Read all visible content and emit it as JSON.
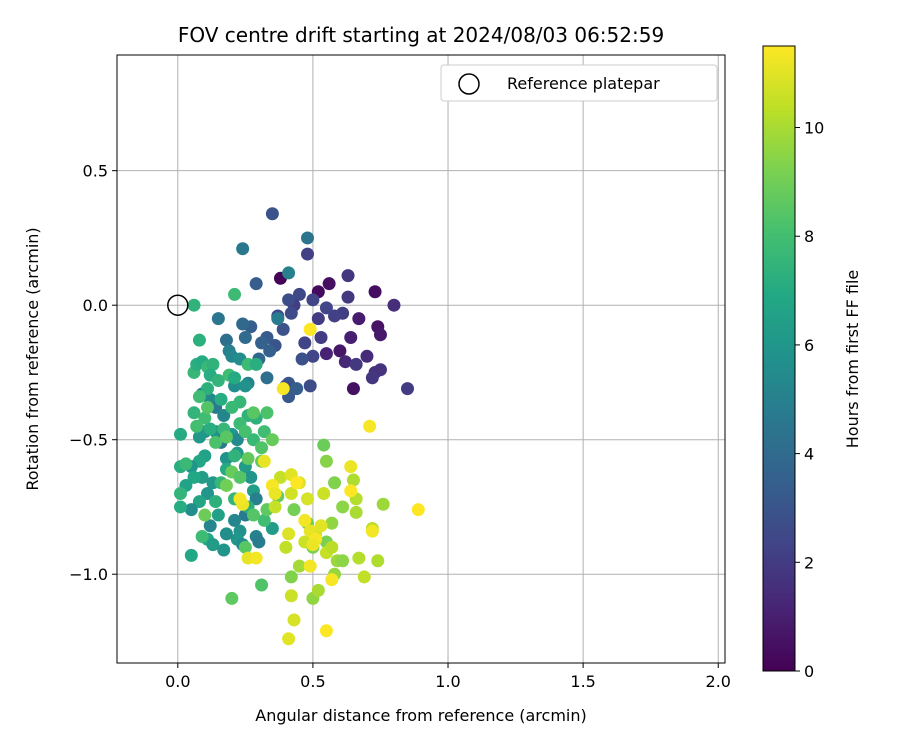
{
  "chart_data": {
    "type": "scatter",
    "title": "FOV centre drift starting at 2024/08/03 06:52:59",
    "xlabel": "Angular distance from reference (arcmin)",
    "ylabel": "Rotation from reference (arcmin)",
    "xlim": [
      -0.225,
      2.025
    ],
    "ylim": [
      -1.33,
      0.93
    ],
    "xticks": [
      0.0,
      0.5,
      1.0,
      1.5,
      2.0
    ],
    "xtick_labels": [
      "0.0",
      "0.5",
      "1.0",
      "1.5",
      "2.0"
    ],
    "yticks": [
      -1.0,
      -0.5,
      0.0,
      0.5
    ],
    "ytick_labels": [
      "−1.0",
      "−0.5",
      "0.0",
      "0.5"
    ],
    "grid": true,
    "legend": {
      "placement": "top-right",
      "entries": [
        {
          "label": "Reference platepar",
          "marker": "open-circle"
        }
      ]
    },
    "reference_point": {
      "x": 0.0,
      "y": 0.0
    },
    "colorbar": {
      "label": "Hours from first FF file",
      "colormap": "viridis",
      "range": [
        0,
        11.5
      ],
      "ticks": [
        0,
        2,
        4,
        6,
        8,
        10
      ],
      "tick_labels": [
        "0",
        "2",
        "4",
        "6",
        "8",
        "10"
      ]
    },
    "points": [
      {
        "x": 0.38,
        "y": 0.1,
        "h": 0.1
      },
      {
        "x": 0.52,
        "y": 0.05,
        "h": 0.3
      },
      {
        "x": 0.56,
        "y": 0.08,
        "h": 0.5
      },
      {
        "x": 0.73,
        "y": 0.05,
        "h": 0.4
      },
      {
        "x": 0.74,
        "y": -0.08,
        "h": 0.6
      },
      {
        "x": 0.75,
        "y": -0.11,
        "h": 0.8
      },
      {
        "x": 0.67,
        "y": -0.05,
        "h": 0.9
      },
      {
        "x": 0.64,
        "y": -0.12,
        "h": 1.0
      },
      {
        "x": 0.55,
        "y": -0.18,
        "h": 1.1
      },
      {
        "x": 0.6,
        "y": -0.17,
        "h": 0.7
      },
      {
        "x": 0.65,
        "y": -0.31,
        "h": 0.5
      },
      {
        "x": 0.62,
        "y": -0.21,
        "h": 1.3
      },
      {
        "x": 0.7,
        "y": -0.19,
        "h": 1.4
      },
      {
        "x": 0.73,
        "y": -0.25,
        "h": 1.6
      },
      {
        "x": 0.75,
        "y": -0.24,
        "h": 1.7
      },
      {
        "x": 0.8,
        "y": 0.0,
        "h": 1.5
      },
      {
        "x": 0.85,
        "y": -0.31,
        "h": 2.0
      },
      {
        "x": 0.72,
        "y": -0.27,
        "h": 1.8
      },
      {
        "x": 0.66,
        "y": -0.22,
        "h": 1.9
      },
      {
        "x": 0.63,
        "y": 0.11,
        "h": 1.8
      },
      {
        "x": 0.63,
        "y": 0.03,
        "h": 1.9
      },
      {
        "x": 0.61,
        "y": -0.03,
        "h": 2.1
      },
      {
        "x": 0.58,
        "y": -0.04,
        "h": 2.2
      },
      {
        "x": 0.55,
        "y": -0.01,
        "h": 2.4
      },
      {
        "x": 0.52,
        "y": -0.05,
        "h": 2.0
      },
      {
        "x": 0.5,
        "y": 0.02,
        "h": 2.3
      },
      {
        "x": 0.48,
        "y": 0.19,
        "h": 2.2
      },
      {
        "x": 0.45,
        "y": 0.04,
        "h": 2.5
      },
      {
        "x": 0.43,
        "y": 0.0,
        "h": 2.1
      },
      {
        "x": 0.42,
        "y": -0.03,
        "h": 2.6
      },
      {
        "x": 0.41,
        "y": 0.02,
        "h": 2.7
      },
      {
        "x": 0.47,
        "y": -0.14,
        "h": 2.3
      },
      {
        "x": 0.5,
        "y": -0.19,
        "h": 2.4
      },
      {
        "x": 0.53,
        "y": -0.12,
        "h": 2.0
      },
      {
        "x": 0.49,
        "y": -0.3,
        "h": 2.6
      },
      {
        "x": 0.46,
        "y": -0.2,
        "h": 2.8
      },
      {
        "x": 0.39,
        "y": -0.09,
        "h": 2.9
      },
      {
        "x": 0.37,
        "y": -0.04,
        "h": 2.5
      },
      {
        "x": 0.36,
        "y": -0.15,
        "h": 3.0
      },
      {
        "x": 0.41,
        "y": -0.29,
        "h": 3.1
      },
      {
        "x": 0.4,
        "y": -0.3,
        "h": 2.8
      },
      {
        "x": 0.41,
        "y": -0.34,
        "h": 3.2
      },
      {
        "x": 0.35,
        "y": 0.34,
        "h": 3.0
      },
      {
        "x": 0.29,
        "y": 0.08,
        "h": 3.4
      },
      {
        "x": 0.33,
        "y": -0.12,
        "h": 3.3
      },
      {
        "x": 0.34,
        "y": -0.17,
        "h": 3.5
      },
      {
        "x": 0.31,
        "y": -0.14,
        "h": 3.6
      },
      {
        "x": 0.27,
        "y": -0.08,
        "h": 3.4
      },
      {
        "x": 0.24,
        "y": -0.07,
        "h": 3.9
      },
      {
        "x": 0.25,
        "y": -0.12,
        "h": 4.0
      },
      {
        "x": 0.3,
        "y": -0.2,
        "h": 3.8
      },
      {
        "x": 0.33,
        "y": -0.27,
        "h": 4.2
      },
      {
        "x": 0.44,
        "y": -0.31,
        "h": 3.4
      },
      {
        "x": 0.48,
        "y": 0.25,
        "h": 4.4
      },
      {
        "x": 0.24,
        "y": 0.21,
        "h": 4.6
      },
      {
        "x": 0.41,
        "y": 0.12,
        "h": 5.0
      },
      {
        "x": 0.37,
        "y": -0.05,
        "h": 4.8
      },
      {
        "x": 0.15,
        "y": -0.05,
        "h": 4.5
      },
      {
        "x": 0.18,
        "y": -0.13,
        "h": 4.2
      },
      {
        "x": 0.19,
        "y": -0.17,
        "h": 4.9
      },
      {
        "x": 0.2,
        "y": -0.19,
        "h": 5.3
      },
      {
        "x": 0.23,
        "y": -0.2,
        "h": 5.5
      },
      {
        "x": 0.26,
        "y": -0.29,
        "h": 5.1
      },
      {
        "x": 0.21,
        "y": -0.3,
        "h": 5.6
      },
      {
        "x": 0.25,
        "y": -0.3,
        "h": 5.8
      },
      {
        "x": 0.09,
        "y": -0.33,
        "h": 5.0
      },
      {
        "x": 0.12,
        "y": -0.35,
        "h": 5.4
      },
      {
        "x": 0.14,
        "y": -0.38,
        "h": 4.7
      },
      {
        "x": 0.17,
        "y": -0.41,
        "h": 5.2
      },
      {
        "x": 0.14,
        "y": -0.47,
        "h": 5.7
      },
      {
        "x": 0.1,
        "y": -0.47,
        "h": 5.9
      },
      {
        "x": 0.08,
        "y": -0.49,
        "h": 6.1
      },
      {
        "x": 0.16,
        "y": -0.51,
        "h": 4.6
      },
      {
        "x": 0.2,
        "y": -0.48,
        "h": 6.0
      },
      {
        "x": 0.22,
        "y": -0.5,
        "h": 5.4
      },
      {
        "x": 0.18,
        "y": -0.57,
        "h": 5.8
      },
      {
        "x": 0.22,
        "y": -0.55,
        "h": 6.2
      },
      {
        "x": 0.25,
        "y": -0.6,
        "h": 6.3
      },
      {
        "x": 0.27,
        "y": -0.64,
        "h": 5.9
      },
      {
        "x": 0.28,
        "y": -0.69,
        "h": 6.4
      },
      {
        "x": 0.29,
        "y": -0.72,
        "h": 4.9
      },
      {
        "x": 0.25,
        "y": -0.78,
        "h": 4.7
      },
      {
        "x": 0.21,
        "y": -0.8,
        "h": 5.3
      },
      {
        "x": 0.23,
        "y": -0.84,
        "h": 5.8
      },
      {
        "x": 0.22,
        "y": -0.87,
        "h": 6.0
      },
      {
        "x": 0.24,
        "y": -0.89,
        "h": 5.5
      },
      {
        "x": 0.29,
        "y": -0.86,
        "h": 5.1
      },
      {
        "x": 0.3,
        "y": -0.88,
        "h": 4.8
      },
      {
        "x": 0.35,
        "y": -0.83,
        "h": 6.3
      },
      {
        "x": 0.1,
        "y": -0.56,
        "h": 6.6
      },
      {
        "x": 0.08,
        "y": -0.58,
        "h": 6.8
      },
      {
        "x": 0.05,
        "y": -0.6,
        "h": 5.9
      },
      {
        "x": 0.09,
        "y": -0.64,
        "h": 6.4
      },
      {
        "x": 0.06,
        "y": -0.64,
        "h": 6.9
      },
      {
        "x": 0.13,
        "y": -0.66,
        "h": 6.1
      },
      {
        "x": 0.03,
        "y": -0.67,
        "h": 6.6
      },
      {
        "x": 0.11,
        "y": -0.7,
        "h": 6.0
      },
      {
        "x": 0.08,
        "y": -0.73,
        "h": 6.7
      },
      {
        "x": 0.05,
        "y": -0.76,
        "h": 5.6
      },
      {
        "x": 0.15,
        "y": -0.78,
        "h": 6.5
      },
      {
        "x": 0.12,
        "y": -0.82,
        "h": 5.3
      },
      {
        "x": 0.18,
        "y": -0.85,
        "h": 5.6
      },
      {
        "x": 0.11,
        "y": -0.87,
        "h": 6.9
      },
      {
        "x": 0.13,
        "y": -0.89,
        "h": 6.3
      },
      {
        "x": 0.17,
        "y": -0.91,
        "h": 5.9
      },
      {
        "x": 0.05,
        "y": -0.93,
        "h": 6.9
      },
      {
        "x": 0.01,
        "y": -0.48,
        "h": 7.0
      },
      {
        "x": 0.01,
        "y": -0.6,
        "h": 7.2
      },
      {
        "x": 0.01,
        "y": -0.7,
        "h": 7.5
      },
      {
        "x": 0.01,
        "y": -0.75,
        "h": 7.1
      },
      {
        "x": 0.06,
        "y": 0.0,
        "h": 7.4
      },
      {
        "x": 0.21,
        "y": 0.04,
        "h": 7.8
      },
      {
        "x": 0.08,
        "y": -0.13,
        "h": 7.3
      },
      {
        "x": 0.06,
        "y": -0.25,
        "h": 7.6
      },
      {
        "x": 0.07,
        "y": -0.22,
        "h": 7.2
      },
      {
        "x": 0.09,
        "y": -0.21,
        "h": 7.0
      },
      {
        "x": 0.11,
        "y": -0.23,
        "h": 7.7
      },
      {
        "x": 0.13,
        "y": -0.22,
        "h": 7.4
      },
      {
        "x": 0.12,
        "y": -0.26,
        "h": 7.1
      },
      {
        "x": 0.11,
        "y": -0.31,
        "h": 7.3
      },
      {
        "x": 0.15,
        "y": -0.28,
        "h": 7.5
      },
      {
        "x": 0.19,
        "y": -0.26,
        "h": 7.9
      },
      {
        "x": 0.21,
        "y": -0.27,
        "h": 7.0
      },
      {
        "x": 0.26,
        "y": -0.22,
        "h": 7.8
      },
      {
        "x": 0.29,
        "y": -0.22,
        "h": 7.2
      },
      {
        "x": 0.23,
        "y": -0.36,
        "h": 7.6
      },
      {
        "x": 0.26,
        "y": -0.41,
        "h": 7.4
      },
      {
        "x": 0.2,
        "y": -0.38,
        "h": 7.7
      },
      {
        "x": 0.16,
        "y": -0.35,
        "h": 7.1
      },
      {
        "x": 0.1,
        "y": -0.42,
        "h": 7.9
      },
      {
        "x": 0.06,
        "y": -0.4,
        "h": 7.5
      },
      {
        "x": 0.07,
        "y": -0.45,
        "h": 8.0
      },
      {
        "x": 0.12,
        "y": -0.46,
        "h": 7.2
      },
      {
        "x": 0.17,
        "y": -0.46,
        "h": 7.6
      },
      {
        "x": 0.23,
        "y": -0.44,
        "h": 7.8
      },
      {
        "x": 0.25,
        "y": -0.47,
        "h": 8.1
      },
      {
        "x": 0.29,
        "y": -0.42,
        "h": 7.3
      },
      {
        "x": 0.33,
        "y": -0.4,
        "h": 8.2
      },
      {
        "x": 0.28,
        "y": -0.5,
        "h": 7.7
      },
      {
        "x": 0.32,
        "y": -0.47,
        "h": 7.9
      },
      {
        "x": 0.21,
        "y": -0.56,
        "h": 7.4
      },
      {
        "x": 0.18,
        "y": -0.61,
        "h": 7.0
      },
      {
        "x": 0.16,
        "y": -0.66,
        "h": 7.6
      },
      {
        "x": 0.14,
        "y": -0.73,
        "h": 7.3
      },
      {
        "x": 0.09,
        "y": -0.86,
        "h": 7.8
      },
      {
        "x": 0.21,
        "y": -0.72,
        "h": 7.5
      },
      {
        "x": 0.26,
        "y": -0.75,
        "h": 7.2
      },
      {
        "x": 0.32,
        "y": -0.8,
        "h": 7.9
      },
      {
        "x": 0.03,
        "y": -0.59,
        "h": 7.7
      },
      {
        "x": 0.08,
        "y": -0.34,
        "h": 7.9
      },
      {
        "x": 0.14,
        "y": -0.51,
        "h": 8.2
      },
      {
        "x": 0.11,
        "y": -0.38,
        "h": 8.4
      },
      {
        "x": 0.28,
        "y": -0.4,
        "h": 8.5
      },
      {
        "x": 0.31,
        "y": -0.58,
        "h": 8.6
      },
      {
        "x": 0.18,
        "y": -0.49,
        "h": 8.5
      },
      {
        "x": 0.2,
        "y": -0.62,
        "h": 8.8
      },
      {
        "x": 0.23,
        "y": -0.64,
        "h": 8.4
      },
      {
        "x": 0.26,
        "y": -0.57,
        "h": 8.7
      },
      {
        "x": 0.35,
        "y": -0.5,
        "h": 8.8
      },
      {
        "x": 0.31,
        "y": -0.53,
        "h": 8.3
      },
      {
        "x": 0.28,
        "y": -0.78,
        "h": 8.4
      },
      {
        "x": 0.33,
        "y": -0.76,
        "h": 8.6
      },
      {
        "x": 0.25,
        "y": -0.9,
        "h": 8.5
      },
      {
        "x": 0.31,
        "y": -1.04,
        "h": 8.3
      },
      {
        "x": 0.2,
        "y": -1.09,
        "h": 8.6
      },
      {
        "x": 0.1,
        "y": -0.78,
        "h": 8.9
      },
      {
        "x": 0.18,
        "y": -0.67,
        "h": 9.0
      },
      {
        "x": 0.37,
        "y": -0.71,
        "h": 8.8
      },
      {
        "x": 0.43,
        "y": -0.76,
        "h": 9.1
      },
      {
        "x": 0.48,
        "y": -0.81,
        "h": 9.0
      },
      {
        "x": 0.5,
        "y": -0.9,
        "h": 9.2
      },
      {
        "x": 0.54,
        "y": -0.52,
        "h": 8.9
      },
      {
        "x": 0.55,
        "y": -0.58,
        "h": 9.4
      },
      {
        "x": 0.58,
        "y": -0.66,
        "h": 9.3
      },
      {
        "x": 0.61,
        "y": -0.75,
        "h": 9.5
      },
      {
        "x": 0.57,
        "y": -0.81,
        "h": 9.6
      },
      {
        "x": 0.55,
        "y": -0.88,
        "h": 9.2
      },
      {
        "x": 0.59,
        "y": -0.95,
        "h": 9.8
      },
      {
        "x": 0.61,
        "y": -0.95,
        "h": 9.5
      },
      {
        "x": 0.58,
        "y": -1.0,
        "h": 9.7
      },
      {
        "x": 0.42,
        "y": -1.01,
        "h": 9.3
      },
      {
        "x": 0.45,
        "y": -0.97,
        "h": 9.9
      },
      {
        "x": 0.5,
        "y": -1.09,
        "h": 9.6
      },
      {
        "x": 0.52,
        "y": -1.06,
        "h": 10.0
      },
      {
        "x": 0.76,
        "y": -0.74,
        "h": 9.8
      },
      {
        "x": 0.65,
        "y": -0.65,
        "h": 10.1
      },
      {
        "x": 0.66,
        "y": -0.72,
        "h": 10.2
      },
      {
        "x": 0.66,
        "y": -0.77,
        "h": 10.0
      },
      {
        "x": 0.72,
        "y": -0.83,
        "h": 10.3
      },
      {
        "x": 0.74,
        "y": -0.95,
        "h": 10.1
      },
      {
        "x": 0.69,
        "y": -1.01,
        "h": 10.4
      },
      {
        "x": 0.67,
        "y": -0.94,
        "h": 10.2
      },
      {
        "x": 0.55,
        "y": -0.92,
        "h": 10.5
      },
      {
        "x": 0.57,
        "y": -0.9,
        "h": 10.3
      },
      {
        "x": 0.47,
        "y": -0.88,
        "h": 10.6
      },
      {
        "x": 0.4,
        "y": -0.9,
        "h": 10.4
      },
      {
        "x": 0.36,
        "y": -0.75,
        "h": 10.5
      },
      {
        "x": 0.42,
        "y": -0.7,
        "h": 10.7
      },
      {
        "x": 0.48,
        "y": -0.72,
        "h": 10.8
      },
      {
        "x": 0.54,
        "y": -0.7,
        "h": 10.6
      },
      {
        "x": 0.45,
        "y": -0.66,
        "h": 10.9
      },
      {
        "x": 0.38,
        "y": -0.64,
        "h": 10.5
      },
      {
        "x": 0.41,
        "y": -0.85,
        "h": 10.9
      },
      {
        "x": 0.51,
        "y": -0.85,
        "h": 10.7
      },
      {
        "x": 0.42,
        "y": -1.08,
        "h": 10.6
      },
      {
        "x": 0.43,
        "y": -1.17,
        "h": 10.8
      },
      {
        "x": 0.41,
        "y": -1.24,
        "h": 11.0
      },
      {
        "x": 0.32,
        "y": -0.58,
        "h": 11.1
      },
      {
        "x": 0.24,
        "y": -0.74,
        "h": 11.2
      },
      {
        "x": 0.23,
        "y": -0.72,
        "h": 11.3
      },
      {
        "x": 0.35,
        "y": -0.67,
        "h": 11.4
      },
      {
        "x": 0.36,
        "y": -0.7,
        "h": 11.2
      },
      {
        "x": 0.42,
        "y": -0.63,
        "h": 11.0
      },
      {
        "x": 0.44,
        "y": -0.66,
        "h": 11.5
      },
      {
        "x": 0.47,
        "y": -0.8,
        "h": 11.3
      },
      {
        "x": 0.49,
        "y": -0.84,
        "h": 11.1
      },
      {
        "x": 0.51,
        "y": -0.87,
        "h": 11.4
      },
      {
        "x": 0.5,
        "y": -0.89,
        "h": 11.2
      },
      {
        "x": 0.53,
        "y": -0.82,
        "h": 11.0
      },
      {
        "x": 0.49,
        "y": -0.97,
        "h": 11.3
      },
      {
        "x": 0.55,
        "y": -1.21,
        "h": 11.5
      },
      {
        "x": 0.57,
        "y": -1.02,
        "h": 11.4
      },
      {
        "x": 0.26,
        "y": -0.94,
        "h": 11.1
      },
      {
        "x": 0.29,
        "y": -0.94,
        "h": 11.3
      },
      {
        "x": 0.64,
        "y": -0.6,
        "h": 11.2
      },
      {
        "x": 0.64,
        "y": -0.69,
        "h": 11.5
      },
      {
        "x": 0.71,
        "y": -0.45,
        "h": 11.4
      },
      {
        "x": 0.72,
        "y": -0.84,
        "h": 11.3
      },
      {
        "x": 0.89,
        "y": -0.76,
        "h": 11.5
      },
      {
        "x": 0.39,
        "y": -0.31,
        "h": 11.4
      },
      {
        "x": 0.49,
        "y": -0.09,
        "h": 11.5
      }
    ]
  }
}
